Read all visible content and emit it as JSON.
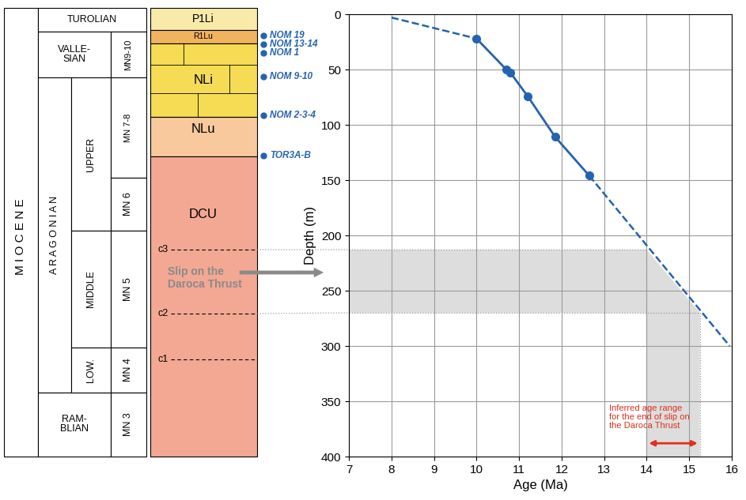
{
  "chart_data": {
    "type": "line",
    "x": [
      10,
      10.7,
      10.8,
      11.2,
      11.85,
      12.65
    ],
    "values": [
      22,
      50,
      53,
      74,
      111,
      146
    ],
    "color": "#2463b0",
    "marker": "o",
    "line_style": "solid",
    "extrapolation": [
      {
        "x": [
          8,
          10
        ],
        "values": [
          3,
          22
        ],
        "line_style": "dashed"
      },
      {
        "x": [
          12.65,
          15.95
        ],
        "values": [
          146,
          300
        ],
        "line_style": "dashed"
      }
    ],
    "xlim": [
      7,
      16
    ],
    "xticks": [
      7,
      8,
      9,
      10,
      11,
      12,
      13,
      14,
      15,
      16
    ],
    "ylim": [
      400,
      0
    ],
    "yticks": [
      0,
      50,
      100,
      150,
      200,
      250,
      300,
      350,
      400
    ],
    "x_label": "Age (Ma)",
    "y_label": "Depth (m)",
    "grid": true,
    "slip_interval": {
      "depth": [
        213,
        270
      ],
      "age": [
        14.0,
        15.25
      ],
      "annotation": "Inferred age range\nfor the end of slip on\nthe Daroca Thrust",
      "color": "#e0301e"
    }
  },
  "column": {
    "epoch": "M I O C E N E",
    "stages": [
      "TUROLIAN",
      "VALLE-\nSIAN",
      "A R A G O N I A N",
      "RAM-\nBLIAN"
    ],
    "subdivisions": [
      "UPPER",
      "MIDDLE",
      "LOW."
    ],
    "mn_zones": [
      "MN9-10",
      "MN 7-8",
      "MN 6",
      "MN 5",
      "MN 4",
      "MN 3"
    ],
    "units": [
      "P1Li",
      "R1Lu",
      "NLi",
      "NLu",
      "DCU"
    ],
    "unit_colors": [
      "#f8eaa8",
      "#f2b35e",
      "#f6dc55",
      "#f7c99c",
      "#f3a893"
    ],
    "horizons": [
      "c3",
      "c2",
      "c1"
    ],
    "slip_label": "Slip on the\nDaroca Thrust",
    "samples": [
      "NOM 19",
      "NOM 13-14",
      "NOM 1",
      "NOM 9-10",
      "NOM 2-3-4",
      "TOR3A-B"
    ],
    "sample_color": "#2463b0"
  }
}
